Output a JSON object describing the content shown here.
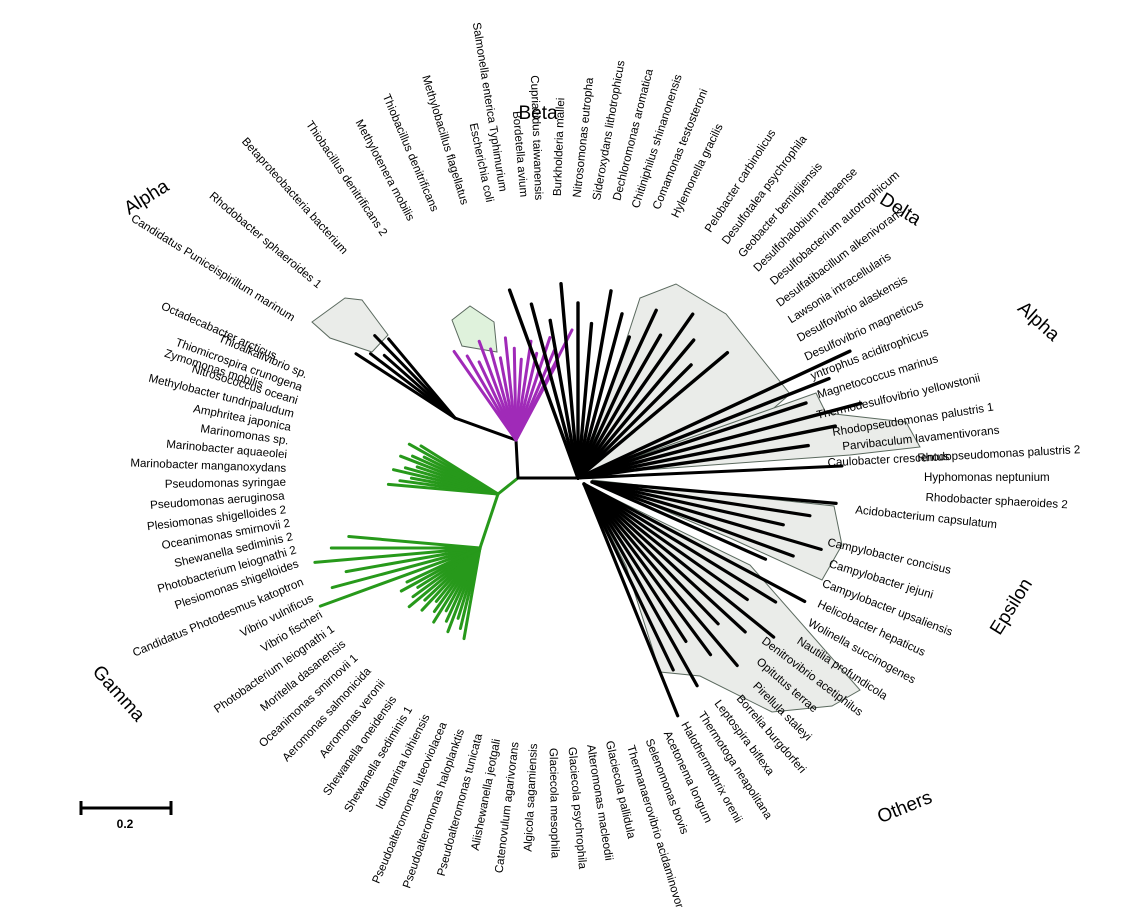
{
  "colors": {
    "gamma": "#27991b",
    "beta": "#a02ab8",
    "black": "#000000",
    "shade_fill": "#eaece9",
    "shade_stroke": "#5b6a5f",
    "beta_shade": "#dff2dc"
  },
  "scale_bar": {
    "label": "0.2"
  },
  "groups": [
    "Alpha",
    "Beta",
    "Delta",
    "Alpha",
    "Epsilon",
    "Others",
    "Gamma"
  ],
  "labels": [
    "Zymomonas mobilis",
    "Octadecabacter arcticus",
    "Candidatus Puniceispirillum marinum",
    "Rhodobacter sphaeroides 1",
    "Betaproteobacteria bacterium",
    "Thiobacillus denitrificans 2",
    "Methylotenera mobilis",
    "Thiobacillus denitrificans",
    "Methylobacillus flagellatus",
    "Escherichia coli",
    "Salmonella enterica Typhimurium",
    "Bordetella avium",
    "Cupriavidus taiwanensis",
    "Burkholderia mallei",
    "Nitrosomonas eutropha",
    "Sideroxydans lithotrophicus",
    "Dechloromonas aromatica",
    "Chitiniphilus shinanonensis",
    "Comamonas testosteroni",
    "Hylemonella gracilis",
    "Pelobacter carbinolicus",
    "Desulfotalea psychrophila",
    "Geobacter bemidjiensis",
    "Desulfohalobium retbaense",
    "Desulfobacterium autotrophicum",
    "Desulfatibacillum alkenivorans",
    "Lawsonia intracellularis",
    "Desulfovibrio alaskensis",
    "Desulfovibrio magneticus",
    "yntrophus aciditrophicus",
    "Magnetococcus marinus",
    "Thermodesulfovibrio yellowstonii",
    "Rhodopseudomonas palustris 1",
    "Parvibaculum lavamentivorans",
    "Caulobacter crescentus",
    "Rhodopseudomonas palustris 2",
    "Hyphomonas neptunium",
    "Rhodobacter sphaeroides 2",
    "Acidobacterium capsulatum",
    "Campylobacter concisus",
    "Campylobacter jejuni",
    "Campylobacter upsaliensis",
    "Helicobacter hepaticus",
    "Wolinella succinogenes",
    "Nautilia profundicola",
    "Denitrovibrio acetiphilus",
    "Opitutus terrae",
    "Pirellula staleyi",
    "Borrelia burgdorferi",
    "Leptospira biflexa",
    "Thermotoga neapolitana",
    "Halothermothrix orenii",
    "Acetonema longum",
    "Selenomonas bovis",
    "Thermanaerovibrio acidaminovorans",
    "Glaciecola pallidula",
    "Alteromonas macleodii",
    "Glaciecola psychrophila",
    "Glaciecola mesophila",
    "Algicola sagamiensis",
    "Catenovulum agarivorans",
    "Aliishewanella jeotgali",
    "Pseudoalteromonas tunicata",
    "Pseudoalteromonas haloplanktis",
    "Pseudoalteromonas luteoviolacea",
    "Idiomarina loihiensis",
    "Shewanella sediminis 1",
    "Shewanella oneidensis",
    "Aeromonas veronii",
    "Aeromonas salmonicida",
    "Oceanimonas smirnovii 1",
    "Moritella dasanensis",
    "Photobacterium leiognathi 1",
    "Vibrio fischeri",
    "Vibrio vulnificus",
    "Candidatus Photodesmus katoptron",
    "Plesiomonas shigelloides",
    "Photobacterium leiognathi 2",
    "Shewanella sediminis 2",
    "Oceanimonas smirnovii 2",
    "Plesiomonas shigelloides 2",
    "Pseudomonas aeruginosa",
    "Pseudomonas syringae",
    "Marinobacter manganoxydans",
    "Marinobacter aquaeolei",
    "Marinomonas sp.",
    "Amphritea japonica",
    "Methylobacter tundripaludum",
    "Nitrosococcus oceani",
    "Thiomicrospira crunogena",
    "Thioalkalivibrio sp."
  ]
}
